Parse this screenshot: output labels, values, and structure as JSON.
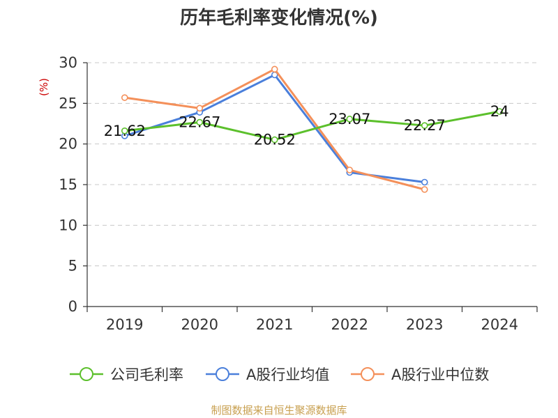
{
  "chart_data": {
    "type": "line",
    "title": "历年毛利率变化情况(%)",
    "ylabel": "(%)",
    "categories": [
      "2019",
      "2020",
      "2021",
      "2022",
      "2023",
      "2024"
    ],
    "ylim": [
      0,
      30
    ],
    "yticks": [
      0,
      5,
      10,
      15,
      20,
      25,
      30
    ],
    "grid": true,
    "legend_position": "bottom",
    "series": [
      {
        "name": "公司毛利率",
        "values": [
          21.62,
          22.67,
          20.52,
          23.07,
          22.27,
          24
        ],
        "color": "#5cc02c",
        "labels": [
          "21.62",
          "22.67",
          "20.52",
          "23.07",
          "22.27",
          "24"
        ]
      },
      {
        "name": "A股行业均值",
        "values": [
          21.0,
          23.9,
          28.5,
          16.5,
          15.3,
          null
        ],
        "color": "#4a7fdb"
      },
      {
        "name": "A股行业中位数",
        "values": [
          25.7,
          24.4,
          29.2,
          16.8,
          14.4,
          null
        ],
        "color": "#f4905a"
      }
    ]
  },
  "colors": {
    "title": "#333333",
    "unit": "#cc0000",
    "source": "#c8a050"
  },
  "source_text": "制图数据来自恒生聚源数据库"
}
